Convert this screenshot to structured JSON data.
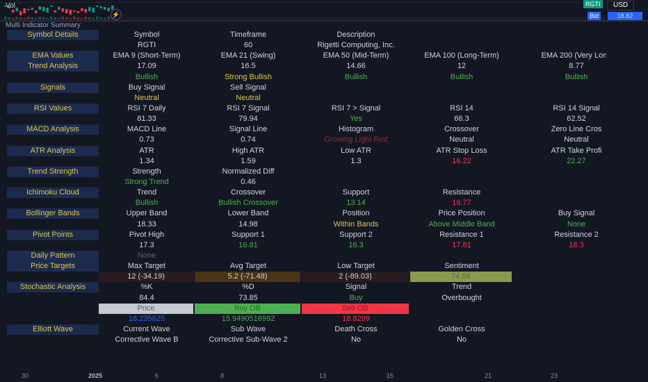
{
  "chart": {
    "indicator": "Vol",
    "symbol_badge": "RGTI",
    "currency": "USD",
    "bid_badge": "Bid",
    "bid_price": "18.82",
    "title": "Multi Indicator Summary",
    "x_axis": [
      "30",
      "2025",
      "6",
      "8",
      "13",
      "15",
      "21",
      "23"
    ]
  },
  "colors": {
    "white": "#d1d4dc",
    "green": "#4caf50",
    "yellow": "#e0c44a",
    "red": "#f23645",
    "gray": "#5d606b",
    "darkred": "#8f2a3a",
    "blue": "#2962ff",
    "label_bg": "#1c2a4e"
  },
  "rows": [
    {
      "label": "Symbol Details",
      "cells": [
        {
          "t": "Symbol"
        },
        {
          "t": "Timeframe"
        },
        {
          "t": "Description"
        }
      ]
    },
    {
      "cells": [
        {
          "t": "RGTI"
        },
        {
          "t": "60"
        },
        {
          "t": "Rigetti Computing, Inc."
        }
      ]
    },
    {
      "label": "EMA Values",
      "cells": [
        {
          "t": "EMA 9 (Short-Term)"
        },
        {
          "t": "EMA 21 (Swing)"
        },
        {
          "t": "EMA 50 (Mid-Term)"
        },
        {
          "t": "EMA 100 (Long-Term)"
        },
        {
          "t": "EMA 200 (Very Long"
        }
      ]
    },
    {
      "label": "Trend Analysis",
      "cells": [
        {
          "t": "17.09"
        },
        {
          "t": "16.5"
        },
        {
          "t": "14.66"
        },
        {
          "t": "12"
        },
        {
          "t": "8.77"
        }
      ]
    },
    {
      "cells": [
        {
          "t": "Bullish",
          "c": "green"
        },
        {
          "t": "Strong Bullish",
          "c": "yellow"
        },
        {
          "t": "Bullish",
          "c": "green"
        },
        {
          "t": "Bullish",
          "c": "green"
        },
        {
          "t": "Bullish",
          "c": "green"
        }
      ]
    },
    {
      "label": "Signals",
      "cells": [
        {
          "t": "Buy Signal"
        },
        {
          "t": "Sell Signal"
        }
      ]
    },
    {
      "cells": [
        {
          "t": "Neutral",
          "c": "yellow"
        },
        {
          "t": "Neutral",
          "c": "yellow"
        }
      ]
    },
    {
      "label": "RSI Values",
      "cells": [
        {
          "t": "RSI 7 Daily"
        },
        {
          "t": "RSI 7 Signal"
        },
        {
          "t": "RSI 7 > Signal"
        },
        {
          "t": "RSI 14"
        },
        {
          "t": "RSI 14 Signal"
        }
      ]
    },
    {
      "cells": [
        {
          "t": "81.33"
        },
        {
          "t": "79.94"
        },
        {
          "t": "Yes",
          "c": "green"
        },
        {
          "t": "66.3"
        },
        {
          "t": "62.52"
        }
      ]
    },
    {
      "label": "MACD Analysis",
      "cells": [
        {
          "t": "MACD Line"
        },
        {
          "t": "Signal Line"
        },
        {
          "t": "Histogram"
        },
        {
          "t": "Crossover"
        },
        {
          "t": "Zero Line Cros"
        }
      ]
    },
    {
      "cells": [
        {
          "t": "0.73"
        },
        {
          "t": "0.74"
        },
        {
          "t": "Growing Light Red",
          "c": "darkred"
        },
        {
          "t": "Neutral"
        },
        {
          "t": "Neutral"
        }
      ]
    },
    {
      "label": "ATR Analysis",
      "cells": [
        {
          "t": "ATR"
        },
        {
          "t": "High ATR"
        },
        {
          "t": "Low ATR"
        },
        {
          "t": "ATR Stop Loss"
        },
        {
          "t": "ATR Take Profi"
        }
      ]
    },
    {
      "cells": [
        {
          "t": "1.34"
        },
        {
          "t": "1.59"
        },
        {
          "t": "1.3"
        },
        {
          "t": "16.22",
          "c": "red"
        },
        {
          "t": "22.27",
          "c": "green"
        }
      ]
    },
    {
      "label": "Trend Strength",
      "cells": [
        {
          "t": "Strength"
        },
        {
          "t": "Normalized Diff"
        }
      ]
    },
    {
      "cells": [
        {
          "t": "Strong Trend",
          "c": "green"
        },
        {
          "t": "0.46"
        }
      ]
    },
    {
      "label": "Ichimoku Cloud",
      "cells": [
        {
          "t": "Trend"
        },
        {
          "t": "Crossover"
        },
        {
          "t": "Support"
        },
        {
          "t": "Resistance"
        }
      ]
    },
    {
      "cells": [
        {
          "t": "Bullish",
          "c": "green"
        },
        {
          "t": "Bullish Crossover",
          "c": "green"
        },
        {
          "t": "13.14",
          "c": "green"
        },
        {
          "t": "16.77",
          "c": "red"
        }
      ]
    },
    {
      "label": "Bollinger Bands",
      "cells": [
        {
          "t": "Upper Band"
        },
        {
          "t": "Lower Band"
        },
        {
          "t": "Position"
        },
        {
          "t": "Price Position"
        },
        {
          "t": "Buy Signal"
        }
      ]
    },
    {
      "cells": [
        {
          "t": "18.33"
        },
        {
          "t": "14.98"
        },
        {
          "t": "Within Bands",
          "c": "yellow"
        },
        {
          "t": "Above Middle Band",
          "c": "green"
        },
        {
          "t": "None",
          "c": "green"
        }
      ]
    },
    {
      "label": "Pivot Points",
      "cells": [
        {
          "t": "Pivot High"
        },
        {
          "t": "Support 1"
        },
        {
          "t": "Support 2"
        },
        {
          "t": "Resistance 1"
        },
        {
          "t": "Resistance 2"
        }
      ]
    },
    {
      "cells": [
        {
          "t": "17.3"
        },
        {
          "t": "16.81",
          "c": "green"
        },
        {
          "t": "16.3",
          "c": "green"
        },
        {
          "t": "17.81",
          "c": "red"
        },
        {
          "t": "18.3",
          "c": "red"
        }
      ]
    },
    {
      "label": "Daily Pattern",
      "cells": [
        {
          "t": "None",
          "c": "gray"
        }
      ]
    },
    {
      "label": "Price Targets",
      "cells": [
        {
          "t": "Max Target"
        },
        {
          "t": "Avg Target"
        },
        {
          "t": "Low Target"
        },
        {
          "t": "Sentiment"
        }
      ]
    },
    {
      "cells": [
        {
          "t": "12 (-34.19)",
          "bg": "#2a1a22"
        },
        {
          "t": "5.2 (-71.48)",
          "bg": "#4a3416"
        },
        {
          "t": "2 (-89.03)",
          "bg": "#2a1a22"
        },
        {
          "t": "74.55",
          "bg": "#8a9a4a",
          "c": "gray"
        }
      ]
    },
    {
      "label": "Stochastic Analysis",
      "cells": [
        {
          "t": "%K"
        },
        {
          "t": "%D"
        },
        {
          "t": "Signal"
        },
        {
          "t": "Trend"
        }
      ]
    },
    {
      "cells": [
        {
          "t": "84.4"
        },
        {
          "t": "73.85"
        },
        {
          "t": "Buy",
          "c": "green"
        },
        {
          "t": "Overbought"
        }
      ]
    },
    {
      "cells": [
        {
          "t": "Price",
          "bg": "#c4c8d0",
          "c": "gray"
        },
        {
          "t": "Buy OB",
          "bg": "#4caf50",
          "c": "#2a6b2d"
        },
        {
          "t": "Sell OB",
          "bg": "#f23645",
          "c": "#8f1a28"
        }
      ]
    },
    {
      "cells": [
        {
          "t": "18.235625",
          "c": "blue"
        },
        {
          "t": "15.9490516992",
          "c": "green"
        },
        {
          "t": "18.8299",
          "c": "red"
        }
      ]
    },
    {
      "label": "Elliott Wave",
      "cells": [
        {
          "t": "Current Wave"
        },
        {
          "t": "Sub Wave"
        },
        {
          "t": "Death Cross"
        },
        {
          "t": "Golden Cross"
        }
      ]
    },
    {
      "cells": [
        {
          "t": "Corrective Wave B"
        },
        {
          "t": "Corrective Sub-Wave 2"
        },
        {
          "t": "No"
        },
        {
          "t": "No"
        }
      ]
    }
  ]
}
